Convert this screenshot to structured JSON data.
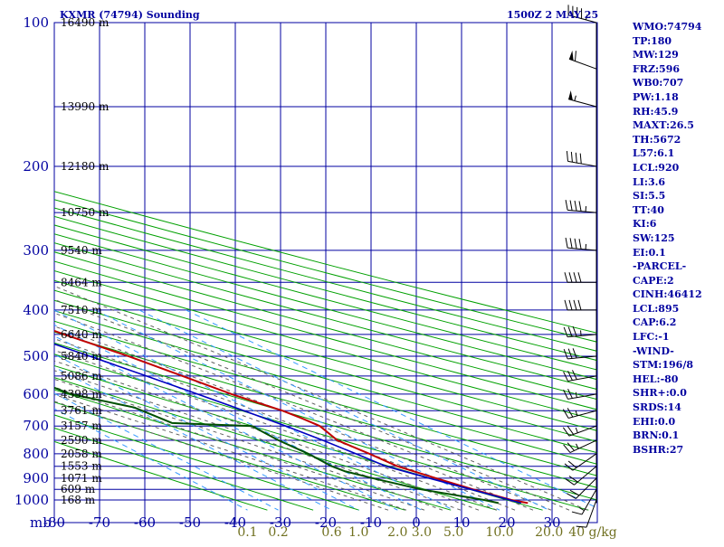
{
  "header": {
    "station": "KXMR (74794) Sounding",
    "time": "1500Z  2 MAY 25"
  },
  "colors": {
    "grid": "#0000a0",
    "dry_adiabat": "#00a000",
    "moist_adiabat": "#606060",
    "mixing_ratio": "#3399ff",
    "temperature": "#c00000",
    "dewpoint": "#005000",
    "parcel": "#0000c0",
    "mixing_label": "#707020",
    "panel_text": "#0000a0"
  },
  "chart_data": {
    "type": "line",
    "title": "KXMR (74794) Sounding",
    "y_axis_unit": "mb",
    "pressure_ticks": [
      "100",
      "200",
      "300",
      "400",
      "500",
      "600",
      "700",
      "800",
      "900",
      "1000"
    ],
    "pressure_tick_values": [
      100,
      200,
      300,
      400,
      500,
      600,
      700,
      800,
      900,
      1000
    ],
    "x_ticks": [
      "-80",
      "-70",
      "-60",
      "-50",
      "-40",
      "-30",
      "-20",
      "-10",
      "0",
      "10",
      "20",
      "30"
    ],
    "x_tick_values": [
      -80,
      -70,
      -60,
      -50,
      -40,
      -30,
      -20,
      -10,
      0,
      10,
      20,
      30
    ],
    "x_range": [
      -80,
      40
    ],
    "y_range": [
      100,
      1050
    ],
    "y_scale": "log",
    "skew_deg_per_ln": 78,
    "height_labels": [
      {
        "p": 100,
        "label": "16490 m"
      },
      {
        "p": 150,
        "label": "13990 m"
      },
      {
        "p": 200,
        "label": "12180 m"
      },
      {
        "p": 250,
        "label": "10750 m"
      },
      {
        "p": 300,
        "label": "9540 m"
      },
      {
        "p": 350,
        "label": "8464 m"
      },
      {
        "p": 400,
        "label": "7510 m"
      },
      {
        "p": 450,
        "label": "6640 m"
      },
      {
        "p": 500,
        "label": "5840 m"
      },
      {
        "p": 550,
        "label": "5086 m"
      },
      {
        "p": 600,
        "label": "4398 m"
      },
      {
        "p": 650,
        "label": "3761 m"
      },
      {
        "p": 700,
        "label": "3157 m"
      },
      {
        "p": 750,
        "label": "2590 m"
      },
      {
        "p": 800,
        "label": "2058 m"
      },
      {
        "p": 850,
        "label": "1553 m"
      },
      {
        "p": 900,
        "label": "1071 m"
      },
      {
        "p": 950,
        "label": "609 m"
      },
      {
        "p": 1000,
        "label": "168 m"
      }
    ],
    "mixing_ratio_labels": [
      "0.1",
      "0.2",
      "0.6",
      "1.0",
      "2.0",
      "3.0",
      "5.0",
      "10.0",
      "20.0",
      "40 g/kg"
    ],
    "mixing_ratio_values": [
      0.1,
      0.2,
      0.6,
      1.0,
      2.0,
      3.0,
      5.0,
      10.0,
      20.0,
      40.0
    ],
    "series": [
      {
        "name": "temperature",
        "points": [
          [
            1015,
            23.5
          ],
          [
            1000,
            21.0
          ],
          [
            950,
            16.5
          ],
          [
            900,
            12.5
          ],
          [
            850,
            8.5
          ],
          [
            800,
            7.0
          ],
          [
            750,
            5.0
          ],
          [
            700,
            6.5
          ],
          [
            675,
            5.5
          ],
          [
            650,
            4.0
          ],
          [
            600,
            -1.0
          ],
          [
            550,
            -5.0
          ],
          [
            500,
            -9.5
          ],
          [
            450,
            -15.5
          ],
          [
            400,
            -21.5
          ],
          [
            350,
            -26.5
          ],
          [
            300,
            -32.5
          ],
          [
            250,
            -40.0
          ],
          [
            225,
            -41.5
          ],
          [
            200,
            -44.5
          ],
          [
            190,
            -48.5
          ],
          [
            170,
            -52.0
          ],
          [
            165,
            -55.0
          ],
          [
            150,
            -60.0
          ],
          [
            140,
            -57.5
          ],
          [
            125,
            -59.5
          ],
          [
            115,
            -61.5
          ],
          [
            100,
            -69.0
          ]
        ]
      },
      {
        "name": "dewpoint",
        "points": [
          [
            1015,
            17.0
          ],
          [
            1000,
            15.0
          ],
          [
            950,
            5.0
          ],
          [
            900,
            -1.5
          ],
          [
            870,
            -5.0
          ],
          [
            850,
            -6.0
          ],
          [
            800,
            -6.5
          ],
          [
            750,
            -8.0
          ],
          [
            700,
            -8.5
          ],
          [
            690,
            -25.0
          ],
          [
            640,
            -27.5
          ],
          [
            600,
            -36.5
          ],
          [
            550,
            -40.0
          ],
          [
            500,
            -42.0
          ],
          [
            460,
            -50.0
          ],
          [
            440,
            -28.0
          ],
          [
            400,
            -26.5
          ],
          [
            380,
            -35.0
          ],
          [
            350,
            -37.0
          ],
          [
            275,
            -48.5
          ],
          [
            260,
            -55.0
          ],
          [
            250,
            -58.0
          ],
          [
            240,
            -59.0
          ],
          [
            220,
            -45.0
          ],
          [
            200,
            -46.5
          ],
          [
            190,
            -54.0
          ],
          [
            180,
            -46.0
          ],
          [
            165,
            -68.0
          ],
          [
            160,
            -70.0
          ],
          [
            150,
            -74.0
          ]
        ]
      },
      {
        "name": "parcel",
        "points": [
          [
            1015,
            22.0
          ],
          [
            950,
            16.0
          ],
          [
            900,
            11.0
          ],
          [
            850,
            6.0
          ],
          [
            800,
            4.0
          ],
          [
            750,
            1.8
          ],
          [
            700,
            -1.0
          ],
          [
            650,
            -4.5
          ],
          [
            600,
            -8.5
          ],
          [
            550,
            -13.0
          ],
          [
            500,
            -18.0
          ],
          [
            450,
            -24.0
          ],
          [
            400,
            -30.0
          ],
          [
            350,
            -37.0
          ],
          [
            300,
            -45.0
          ],
          [
            250,
            -53.0
          ],
          [
            200,
            -62.0
          ],
          [
            175,
            -67.0
          ],
          [
            150,
            -72.0
          ]
        ]
      }
    ],
    "wind_barbs": [
      {
        "p": 1000,
        "dir": 200,
        "spd": 10
      },
      {
        "p": 950,
        "dir": 210,
        "spd": 15
      },
      {
        "p": 900,
        "dir": 225,
        "spd": 20
      },
      {
        "p": 850,
        "dir": 230,
        "spd": 20
      },
      {
        "p": 800,
        "dir": 235,
        "spd": 20
      },
      {
        "p": 750,
        "dir": 245,
        "spd": 25
      },
      {
        "p": 700,
        "dir": 250,
        "spd": 25
      },
      {
        "p": 650,
        "dir": 255,
        "spd": 25
      },
      {
        "p": 600,
        "dir": 260,
        "spd": 25
      },
      {
        "p": 550,
        "dir": 260,
        "spd": 30
      },
      {
        "p": 500,
        "dir": 265,
        "spd": 30
      },
      {
        "p": 450,
        "dir": 265,
        "spd": 35
      },
      {
        "p": 400,
        "dir": 270,
        "spd": 40
      },
      {
        "p": 350,
        "dir": 270,
        "spd": 40
      },
      {
        "p": 300,
        "dir": 275,
        "spd": 45
      },
      {
        "p": 250,
        "dir": 275,
        "spd": 45
      },
      {
        "p": 200,
        "dir": 280,
        "spd": 40
      },
      {
        "p": 150,
        "dir": 285,
        "spd": 55
      },
      {
        "p": 125,
        "dir": 290,
        "spd": 60
      },
      {
        "p": 100,
        "dir": 285,
        "spd": 45
      }
    ]
  },
  "indices": [
    "WMO:74794",
    "TP:180",
    "MW:129",
    "FRZ:596",
    "WB0:707",
    "PW:1.18",
    "RH:45.9",
    "MAXT:26.5",
    "TH:5672",
    "L57:6.1",
    "LCL:920",
    "LI:3.6",
    "SI:5.5",
    "TT:40",
    "KI:6",
    "SW:125",
    "EI:0.1",
    "-PARCEL-",
    "CAPE:2",
    "CINH:46412",
    "LCL:895",
    "CAP:6.2",
    "LFC:-1",
    "-WIND-",
    "STM:196/8",
    "HEL:-80",
    "SHR+:0.0",
    "SRDS:14",
    "EHI:0.0",
    "BRN:0.1",
    "BSHR:27"
  ]
}
